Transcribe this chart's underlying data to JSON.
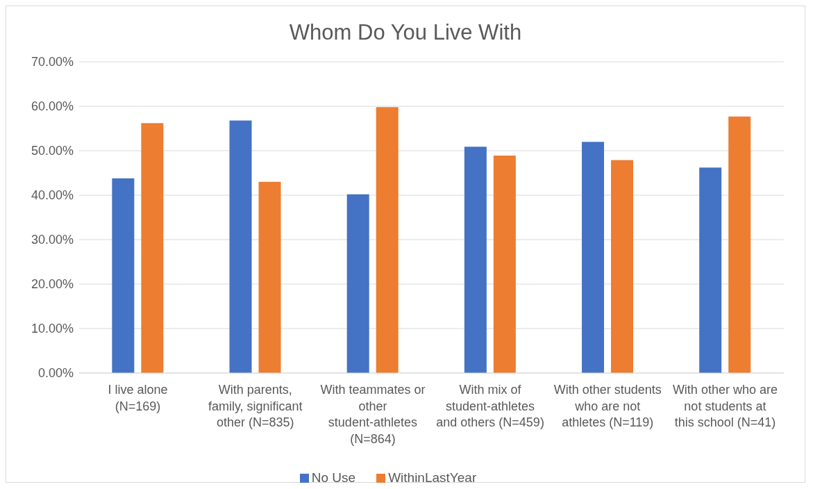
{
  "chart_data": {
    "type": "bar",
    "title": "Whom Do You Live With",
    "categories": [
      "I live alone (N=169)",
      "With parents, family, significant other (N=835)",
      "With teammates or other student-athletes (N=864)",
      "With mix of student-athletes and others (N=459)",
      "With other students who are not athletes (N=119)",
      "With other who are not students at this school (N=41)"
    ],
    "series": [
      {
        "name": "No Use",
        "color": "#4472c4",
        "values": [
          43.8,
          56.8,
          40.2,
          50.9,
          52.0,
          46.2
        ]
      },
      {
        "name": "WithinLastYear",
        "color": "#ed7d31",
        "values": [
          56.2,
          43.0,
          59.8,
          48.9,
          47.9,
          57.7
        ]
      }
    ],
    "ylim": [
      0,
      70
    ],
    "yticks": [
      {
        "value": 0,
        "label": "0.00%"
      },
      {
        "value": 10,
        "label": "10.00%"
      },
      {
        "value": 20,
        "label": "20.00%"
      },
      {
        "value": 30,
        "label": "30.00%"
      },
      {
        "value": 40,
        "label": "40.00%"
      },
      {
        "value": 50,
        "label": "50.00%"
      },
      {
        "value": 60,
        "label": "60.00%"
      },
      {
        "value": 70,
        "label": "70.00%"
      }
    ],
    "grid": "y",
    "legend": "bottom"
  }
}
